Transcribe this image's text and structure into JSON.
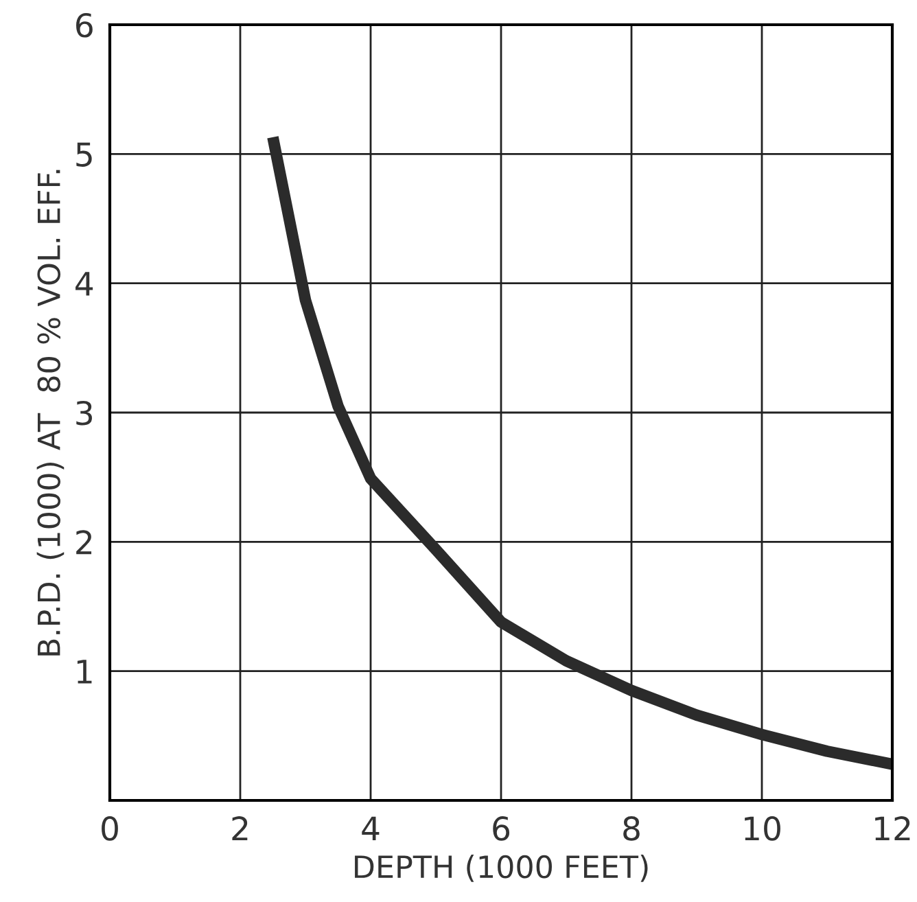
{
  "chart_data": {
    "type": "line",
    "xlabel": "DEPTH (1000 FEET)",
    "ylabel": "B.P.D. (1000) AT  80 % VOL. EFF.",
    "x": [
      2.5,
      3,
      3.5,
      4,
      5,
      6,
      7,
      8,
      9,
      10,
      11,
      12
    ],
    "series": [
      {
        "color": "#2b2b2b",
        "values": [
          5.13,
          3.87,
          3.05,
          2.49,
          1.94,
          1.38,
          1.08,
          0.85,
          0.66,
          0.51,
          0.38,
          0.28
        ]
      }
    ],
    "xlim": [
      0,
      12
    ],
    "ylim": [
      0,
      6
    ],
    "xticks": [
      0,
      2,
      4,
      6,
      8,
      10,
      12
    ],
    "yticks": [
      {
        "value": 0,
        "label": null
      },
      1,
      2,
      3,
      4,
      5,
      6
    ],
    "grid": true,
    "marker": "none",
    "line_style": "solid"
  }
}
